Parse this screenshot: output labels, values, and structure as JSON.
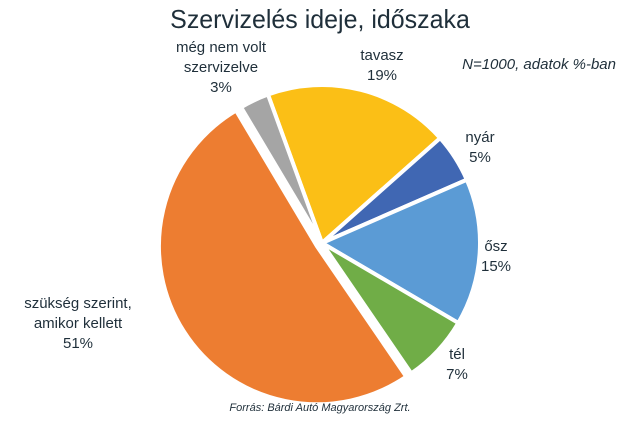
{
  "chart_data": {
    "type": "pie",
    "title": "Szervizelés ideje, időszaka",
    "note": "N=1000, adatok %-ban",
    "source": "Forrás: Bárdi Autó Magyarország Zrt.",
    "slices": [
      {
        "label": [
          "tavasz"
        ],
        "value": 19,
        "value_label": "19%",
        "color": "#fbbf16"
      },
      {
        "label": [
          "nyár"
        ],
        "value": 5,
        "value_label": "5%",
        "color": "#4067b3"
      },
      {
        "label": [
          "ősz"
        ],
        "value": 15,
        "value_label": "15%",
        "color": "#5b9bd5"
      },
      {
        "label": [
          "tél"
        ],
        "value": 7,
        "value_label": "7%",
        "color": "#70ad47"
      },
      {
        "label": [
          "szükség szerint,",
          "amikor kellett"
        ],
        "value": 51,
        "value_label": "51%",
        "color": "#ed7d31"
      },
      {
        "label": [
          "még nem volt",
          "szervizelve"
        ],
        "value": 3,
        "value_label": "3%",
        "color": "#a5a5a5"
      }
    ]
  }
}
